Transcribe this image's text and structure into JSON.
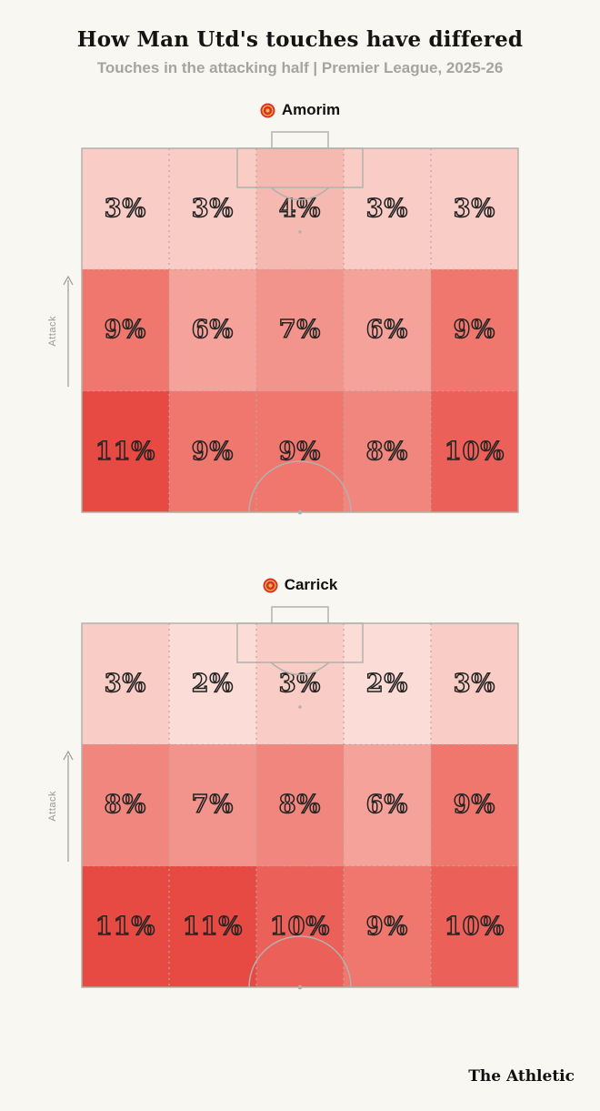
{
  "header": {
    "title": "How Man Utd's touches have differed",
    "subtitle": "Touches in the attacking half | Premier League, 2025-26"
  },
  "footer": {
    "brand": "The Athletic"
  },
  "chart_data": [
    {
      "type": "heatmap",
      "title": "Amorim",
      "icon": "man-utd-crest",
      "unit": "%",
      "axis_label": "Attack",
      "orientation": "attack-up",
      "grid": {
        "rows": 3,
        "cols": 5
      },
      "values": [
        [
          3,
          3,
          4,
          3,
          3
        ],
        [
          9,
          6,
          7,
          6,
          9
        ],
        [
          11,
          9,
          9,
          8,
          10
        ]
      ]
    },
    {
      "type": "heatmap",
      "title": "Carrick",
      "icon": "man-utd-crest",
      "unit": "%",
      "axis_label": "Attack",
      "orientation": "attack-up",
      "grid": {
        "rows": 3,
        "cols": 5
      },
      "values": [
        [
          3,
          2,
          3,
          2,
          3
        ],
        [
          8,
          7,
          8,
          6,
          9
        ],
        [
          11,
          11,
          10,
          9,
          10
        ]
      ]
    }
  ],
  "style": {
    "background": "#f8f7f2",
    "pitch_line_color": "#b2b2ac",
    "grid_dash_color": "#b7a6a1",
    "value_color_scale": {
      "2": "#fbdcd6",
      "3": "#f9ccc5",
      "4": "#f6b9b1",
      "6": "#f5a29a",
      "7": "#f3948c",
      "8": "#f1867e",
      "9": "#ef776e",
      "10": "#eb6058",
      "11": "#e74a43"
    },
    "crest_colors": {
      "red": "#d8322a",
      "gold": "#efb53f"
    }
  }
}
